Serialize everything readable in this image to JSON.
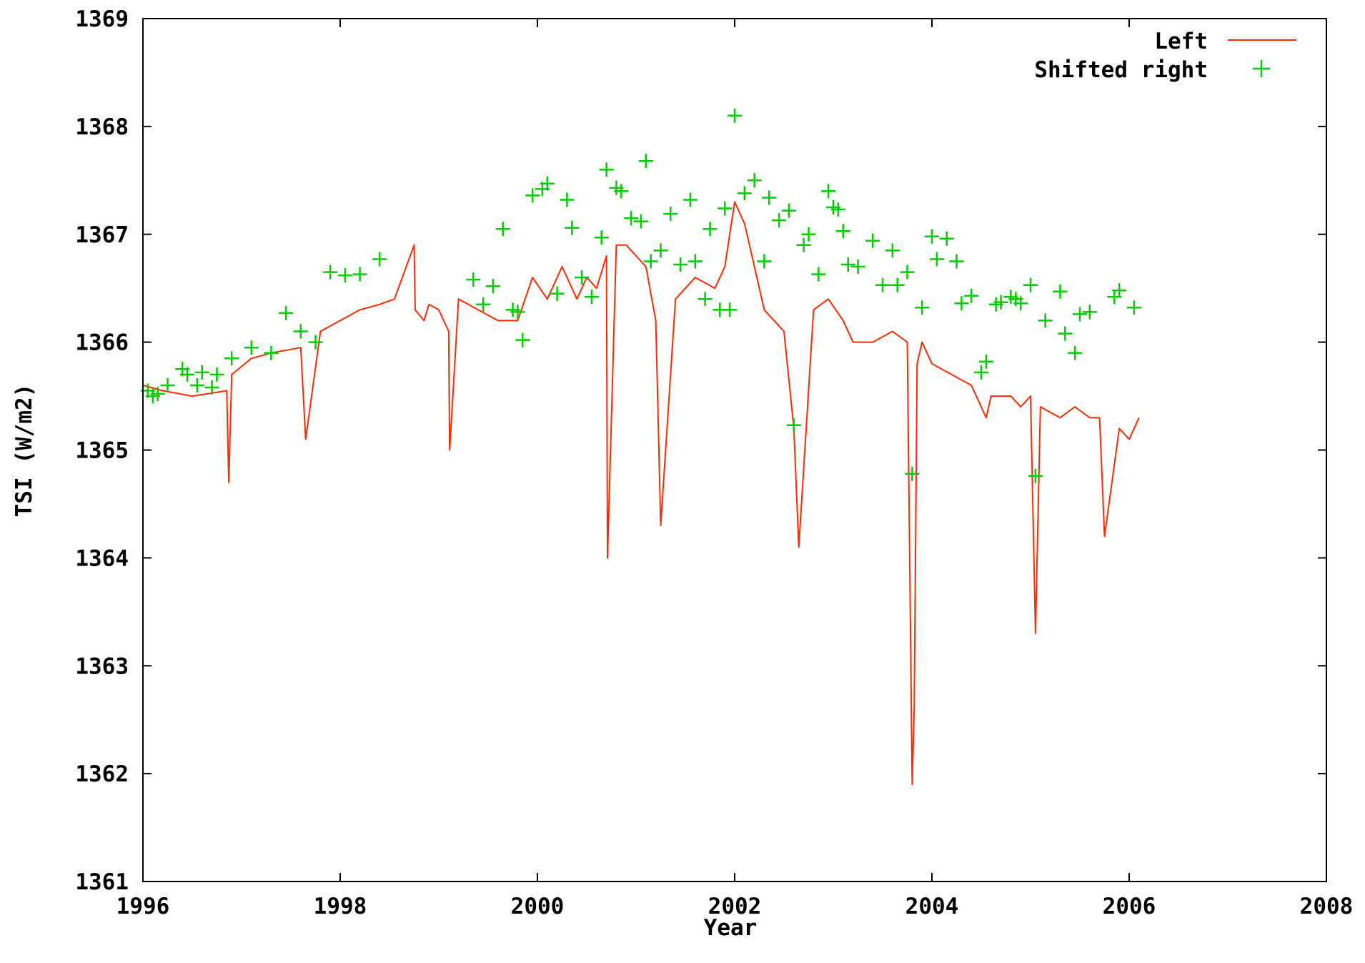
{
  "chart_data": {
    "type": "line",
    "title": "",
    "xlabel": "Year",
    "ylabel": "TSI (W/m2)",
    "xlim": [
      1996,
      2008
    ],
    "ylim": [
      1361,
      1369
    ],
    "xticks": [
      "1996",
      "1998",
      "2000",
      "2002",
      "2004",
      "2006",
      "2008"
    ],
    "yticks": [
      "1361",
      "1362",
      "1363",
      "1364",
      "1365",
      "1366",
      "1367",
      "1368",
      "1369"
    ],
    "grid": false,
    "legend_position": "top-right",
    "colors": {
      "left": "#ff2a00",
      "shifted_right": "#00cc00"
    },
    "series": [
      {
        "name": "Left",
        "style": "line",
        "x": [
          1996.0,
          1996.2,
          1996.5,
          1996.85,
          1996.87,
          1996.9,
          1997.1,
          1997.3,
          1997.6,
          1997.65,
          1997.8,
          1998.0,
          1998.2,
          1998.4,
          1998.55,
          1998.75,
          1998.76,
          1998.85,
          1998.9,
          1999.0,
          1999.1,
          1999.11,
          1999.2,
          1999.4,
          1999.6,
          1999.8,
          1999.95,
          2000.1,
          2000.25,
          2000.4,
          2000.5,
          2000.6,
          2000.7,
          2000.71,
          2000.8,
          2000.9,
          2001.1,
          2001.2,
          2001.25,
          2001.4,
          2001.6,
          2001.8,
          2001.9,
          2002.0,
          2002.1,
          2002.2,
          2002.3,
          2002.5,
          2002.6,
          2002.65,
          2002.8,
          2002.95,
          2003.1,
          2003.2,
          2003.4,
          2003.6,
          2003.75,
          2003.8,
          2003.82,
          2003.85,
          2003.9,
          2004.0,
          2004.2,
          2004.4,
          2004.55,
          2004.6,
          2004.8,
          2004.9,
          2005.0,
          2005.05,
          2005.1,
          2005.3,
          2005.45,
          2005.6,
          2005.7,
          2005.75,
          2005.9,
          2006.0,
          2006.1
        ],
        "y": [
          1365.6,
          1365.55,
          1365.5,
          1365.55,
          1364.7,
          1365.7,
          1365.85,
          1365.9,
          1365.95,
          1365.1,
          1366.1,
          1366.2,
          1366.3,
          1366.35,
          1366.4,
          1366.9,
          1366.3,
          1366.2,
          1366.35,
          1366.3,
          1366.1,
          1365.0,
          1366.4,
          1366.3,
          1366.2,
          1366.2,
          1366.6,
          1366.4,
          1366.7,
          1366.4,
          1366.6,
          1366.5,
          1366.8,
          1364.0,
          1366.9,
          1366.9,
          1366.7,
          1366.2,
          1364.3,
          1366.4,
          1366.6,
          1366.5,
          1366.7,
          1367.3,
          1367.1,
          1366.7,
          1366.3,
          1366.1,
          1365.2,
          1364.1,
          1366.3,
          1366.4,
          1366.2,
          1366.0,
          1366.0,
          1366.1,
          1366.0,
          1361.9,
          1362.6,
          1365.8,
          1366.0,
          1365.8,
          1365.7,
          1365.6,
          1365.3,
          1365.5,
          1365.5,
          1365.4,
          1365.5,
          1363.3,
          1365.4,
          1365.3,
          1365.4,
          1365.3,
          1365.3,
          1364.2,
          1365.2,
          1365.1,
          1365.3
        ]
      },
      {
        "name": "Shifted right",
        "style": "points",
        "x": [
          1996.05,
          1996.1,
          1996.15,
          1996.25,
          1996.4,
          1996.45,
          1996.55,
          1996.6,
          1996.7,
          1996.75,
          1996.9,
          1997.1,
          1997.3,
          1997.45,
          1997.6,
          1997.75,
          1997.9,
          1998.05,
          1998.2,
          1998.4,
          1999.35,
          1999.45,
          1999.55,
          1999.65,
          1999.75,
          1999.8,
          1999.85,
          1999.95,
          2000.05,
          2000.1,
          2000.2,
          2000.3,
          2000.35,
          2000.45,
          2000.55,
          2000.65,
          2000.7,
          2000.8,
          2000.85,
          2000.95,
          2001.05,
          2001.1,
          2001.15,
          2001.25,
          2001.35,
          2001.45,
          2001.55,
          2001.6,
          2001.7,
          2001.75,
          2001.85,
          2001.9,
          2001.95,
          2002.0,
          2002.1,
          2002.2,
          2002.3,
          2002.35,
          2002.45,
          2002.55,
          2002.6,
          2002.7,
          2002.75,
          2002.85,
          2002.95,
          2003.0,
          2003.05,
          2003.1,
          2003.15,
          2003.25,
          2003.4,
          2003.5,
          2003.6,
          2003.65,
          2003.75,
          2003.8,
          2003.9,
          2004.0,
          2004.05,
          2004.15,
          2004.25,
          2004.3,
          2004.4,
          2004.5,
          2004.55,
          2004.65,
          2004.7,
          2004.8,
          2004.85,
          2004.9,
          2005.0,
          2005.05,
          2005.15,
          2005.3,
          2005.35,
          2005.45,
          2005.5,
          2005.6,
          2005.85,
          2005.9,
          2006.05
        ],
        "y": [
          1365.55,
          1365.5,
          1365.52,
          1365.6,
          1365.75,
          1365.7,
          1365.6,
          1365.72,
          1365.58,
          1365.7,
          1365.85,
          1365.95,
          1365.9,
          1366.27,
          1366.1,
          1366.0,
          1366.65,
          1366.62,
          1366.63,
          1366.77,
          1366.58,
          1366.35,
          1366.52,
          1367.05,
          1366.3,
          1366.28,
          1366.02,
          1367.36,
          1367.42,
          1367.47,
          1366.45,
          1367.32,
          1367.06,
          1366.6,
          1366.42,
          1366.97,
          1367.6,
          1367.43,
          1367.4,
          1367.15,
          1367.12,
          1367.68,
          1366.75,
          1366.85,
          1367.19,
          1366.72,
          1367.32,
          1366.75,
          1366.4,
          1367.05,
          1366.3,
          1367.24,
          1366.3,
          1368.1,
          1367.38,
          1367.5,
          1366.75,
          1367.34,
          1367.13,
          1367.22,
          1365.23,
          1366.9,
          1367.0,
          1366.63,
          1367.4,
          1367.25,
          1367.23,
          1367.03,
          1366.72,
          1366.7,
          1366.94,
          1366.53,
          1366.85,
          1366.53,
          1366.65,
          1364.78,
          1366.32,
          1366.98,
          1366.77,
          1366.96,
          1366.75,
          1366.36,
          1366.43,
          1365.72,
          1365.82,
          1366.35,
          1366.37,
          1366.42,
          1366.4,
          1366.36,
          1366.53,
          1364.76,
          1366.2,
          1366.47,
          1366.08,
          1365.9,
          1366.26,
          1366.28,
          1366.42,
          1366.48,
          1366.32
        ]
      }
    ]
  }
}
